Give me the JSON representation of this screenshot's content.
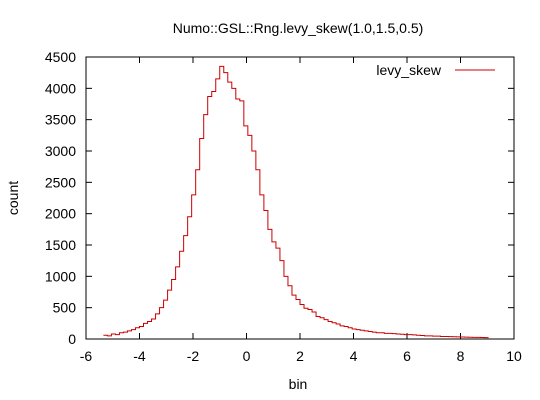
{
  "chart_data": {
    "type": "histogram",
    "title": "Numo::GSL::Rng.levy_skew(1.0,1.5,0.5)",
    "xlabel": "bin",
    "ylabel": "count",
    "xlim": [
      -6,
      10
    ],
    "ylim": [
      0,
      4500
    ],
    "xticks": [
      "-6",
      "-4",
      "-2",
      "0",
      "2",
      "4",
      "6",
      "8",
      "10"
    ],
    "yticks": [
      "0",
      "500",
      "1000",
      "1500",
      "2000",
      "2500",
      "3000",
      "3500",
      "4000",
      "4500"
    ],
    "grid": false,
    "legend_position": "top-right",
    "series": [
      {
        "name": "levy_skew",
        "color": "#cc0000",
        "bin_width": 0.15,
        "x_start": -5.35,
        "values": [
          60,
          50,
          80,
          70,
          100,
          110,
          130,
          150,
          180,
          200,
          250,
          280,
          320,
          400,
          500,
          620,
          780,
          950,
          1150,
          1400,
          1650,
          1950,
          2300,
          2700,
          3200,
          3580,
          3870,
          3950,
          4150,
          4350,
          4250,
          4100,
          4000,
          3830,
          3800,
          3400,
          3250,
          3000,
          2700,
          2300,
          2050,
          1750,
          1550,
          1450,
          1250,
          1000,
          850,
          700,
          630,
          550,
          490,
          470,
          430,
          360,
          340,
          310,
          280,
          260,
          240,
          210,
          200,
          180,
          160,
          150,
          140,
          130,
          120,
          110,
          100,
          100,
          90,
          90,
          85,
          80,
          75,
          70,
          70,
          65,
          60,
          55,
          50,
          50,
          45,
          45,
          40,
          40,
          38,
          36,
          34,
          32,
          30,
          28,
          26,
          25,
          24,
          22
        ]
      }
    ]
  }
}
